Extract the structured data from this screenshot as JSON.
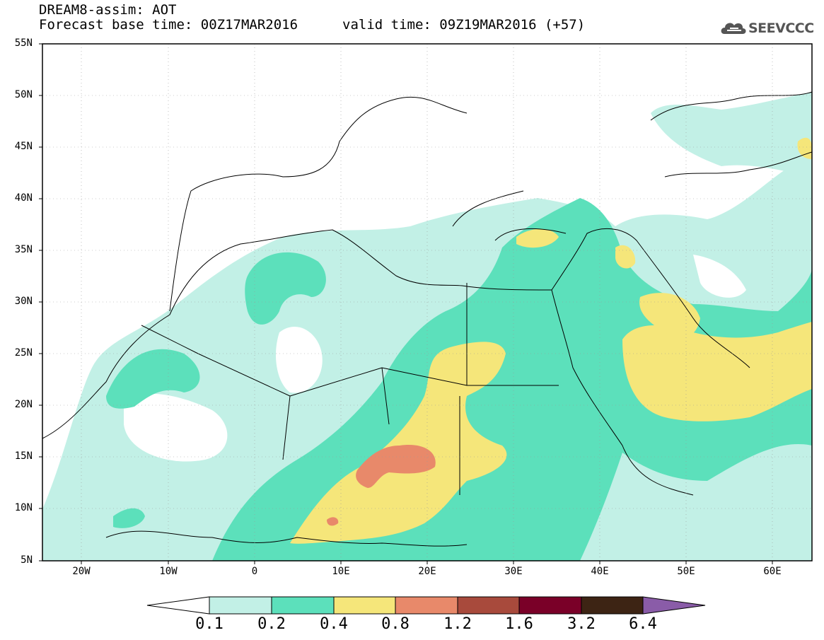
{
  "header": {
    "title": "DREAM8-assim: AOT",
    "base_time": "Forecast base time: 00Z17MAR2016",
    "valid_time": "valid time: 09Z19MAR2016 (+57)",
    "logo_text": "SEEVCCC"
  },
  "axes": {
    "lat_labels": [
      "55N",
      "50N",
      "45N",
      "40N",
      "35N",
      "30N",
      "25N",
      "20N",
      "15N",
      "10N",
      "5N"
    ],
    "lon_labels": [
      "20W",
      "10W",
      "0",
      "10E",
      "20E",
      "30E",
      "40E",
      "50E",
      "60E"
    ]
  },
  "colorbar": {
    "levels": [
      "0.1",
      "0.2",
      "0.4",
      "0.8",
      "1.2",
      "1.6",
      "3.2",
      "6.4"
    ],
    "colors": [
      "#ffffff",
      "#c2f0e6",
      "#5ce0bb",
      "#f5e67a",
      "#e8896a",
      "#a84a3c",
      "#7a0028",
      "#3d2414",
      "#8a5ca8"
    ]
  }
}
